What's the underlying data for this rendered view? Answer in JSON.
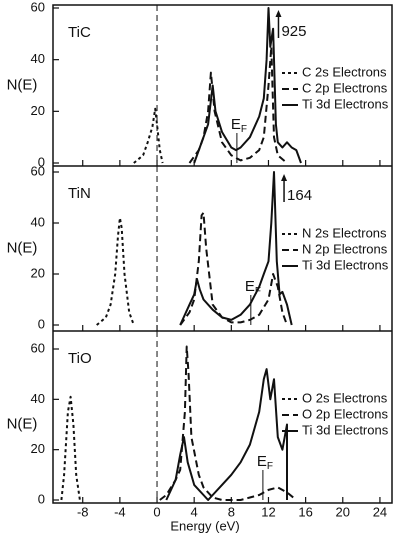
{
  "chart_data": [
    {
      "type": "line",
      "panel_label": "TiC",
      "ylabel": "N(E)",
      "ylim": [
        0,
        60
      ],
      "yticks": [
        0,
        20,
        40,
        60
      ],
      "xlim": [
        -11.2,
        25.3
      ],
      "peak_label": "925",
      "peak_x": 12,
      "ef": 8.6,
      "ef_label": "E",
      "ef_subscript": "F",
      "series": [
        {
          "name": "C 2s Electrons",
          "color": "#111111",
          "dash": "3 3",
          "x": [
            -2.5,
            -1.5,
            -1,
            -0.5,
            -0.2,
            0,
            0.3,
            0.6
          ],
          "values": [
            0,
            3,
            8,
            14,
            21,
            15,
            5,
            0
          ]
        },
        {
          "name": "C 2p Electrons",
          "color": "#111111",
          "dash": "7 4",
          "x": [
            3.5,
            4.5,
            5,
            5.5,
            5.8,
            6.2,
            7,
            8,
            9,
            10,
            11,
            11.5,
            12,
            12.3,
            12.6,
            13,
            14
          ],
          "values": [
            0,
            5,
            10,
            20,
            35,
            20,
            8,
            3,
            1,
            2,
            5,
            10,
            30,
            45,
            10,
            3,
            0
          ]
        },
        {
          "name": "Ti 3d Electrons",
          "color": "#111111",
          "dash": "none",
          "x": [
            4,
            5,
            5.5,
            6,
            6.3,
            7,
            8,
            8.5,
            9,
            10,
            11,
            11.5,
            11.8,
            12,
            12.2,
            12.5,
            12.8,
            13,
            13.5,
            14,
            14.5,
            15,
            15.5
          ],
          "values": [
            0,
            10,
            15,
            30,
            20,
            12,
            6,
            5,
            6,
            10,
            18,
            25,
            40,
            60,
            45,
            52,
            15,
            8,
            6,
            8,
            6,
            5,
            0
          ]
        }
      ]
    },
    {
      "type": "line",
      "panel_label": "TiN",
      "ylabel": "N(E)",
      "ylim": [
        0,
        60
      ],
      "yticks": [
        0,
        20,
        40,
        60
      ],
      "xlim": [
        -11.2,
        25.3
      ],
      "peak_label": "164",
      "peak_x": 12.6,
      "ef": 10.1,
      "ef_label": "E",
      "ef_subscript": "F",
      "series": [
        {
          "name": "N 2s Electrons",
          "color": "#111111",
          "dash": "3 3",
          "x": [
            -6.5,
            -5.5,
            -5,
            -4.5,
            -4.2,
            -4,
            -3.8,
            -3.5,
            -3,
            -2.5
          ],
          "values": [
            0,
            3,
            8,
            20,
            35,
            42,
            38,
            20,
            5,
            0
          ]
        },
        {
          "name": "N 2p Electrons",
          "color": "#111111",
          "dash": "7 4",
          "x": [
            2.5,
            3.5,
            4,
            4.5,
            4.8,
            5,
            5.3,
            6,
            7,
            8,
            9,
            10,
            11,
            12,
            12.5,
            13,
            13.5,
            14
          ],
          "values": [
            0,
            5,
            10,
            25,
            43,
            44,
            30,
            8,
            3,
            1,
            1,
            2,
            4,
            10,
            20,
            15,
            5,
            0
          ]
        },
        {
          "name": "Ti 3d Electrons",
          "color": "#111111",
          "dash": "none",
          "x": [
            2.5,
            3.5,
            4,
            4.3,
            4.6,
            5,
            6,
            7,
            8,
            9,
            10,
            11,
            11.5,
            12,
            12.3,
            12.6,
            12.9,
            13.2,
            13.5,
            14,
            14.5
          ],
          "values": [
            0,
            8,
            12,
            18,
            14,
            10,
            6,
            3,
            2,
            4,
            8,
            15,
            20,
            25,
            40,
            60,
            25,
            12,
            13,
            8,
            0
          ]
        }
      ]
    },
    {
      "type": "line",
      "panel_label": "TiO",
      "ylabel": "N(E)",
      "ylim": [
        0,
        60
      ],
      "yticks": [
        0,
        20,
        40,
        60
      ],
      "xlim": [
        -11.2,
        25.3
      ],
      "xlabel": "Energy (eV)",
      "xticks": [
        -8,
        -4,
        0,
        4,
        8,
        12,
        16,
        20,
        24
      ],
      "ef": 11.4,
      "ef_label": "E",
      "ef_subscript": "F",
      "series": [
        {
          "name": "O 2s Electrons",
          "color": "#111111",
          "dash": "3 3",
          "x": [
            -10.3,
            -10,
            -9.6,
            -9.3,
            -9,
            -8.7,
            -8.3
          ],
          "values": [
            0,
            10,
            35,
            41,
            30,
            10,
            0
          ]
        },
        {
          "name": "O 2p Electrons",
          "color": "#111111",
          "dash": "7 4",
          "x": [
            0.3,
            1,
            1.5,
            2,
            2.5,
            3,
            3.2,
            3.4,
            3.7,
            4.5,
            5,
            6,
            7,
            8,
            9,
            10,
            11,
            12,
            13,
            14,
            15
          ],
          "values": [
            0,
            2,
            5,
            8,
            12,
            35,
            61,
            50,
            25,
            10,
            5,
            1,
            0,
            0,
            0,
            1,
            2,
            4,
            5,
            3,
            0
          ]
        },
        {
          "name": "Ti 3d Electrons",
          "color": "#111111",
          "dash": "none",
          "x": [
            1,
            2,
            2.5,
            2.9,
            3.3,
            4,
            5,
            5.5,
            6,
            7,
            8,
            9,
            10,
            11,
            11.5,
            11.8,
            12.2,
            12.6,
            13,
            13.5,
            14,
            14
          ],
          "values": [
            0,
            8,
            18,
            25,
            15,
            6,
            2,
            0,
            2,
            6,
            10,
            15,
            22,
            35,
            48,
            52,
            40,
            48,
            25,
            20,
            30,
            0
          ]
        }
      ]
    }
  ]
}
